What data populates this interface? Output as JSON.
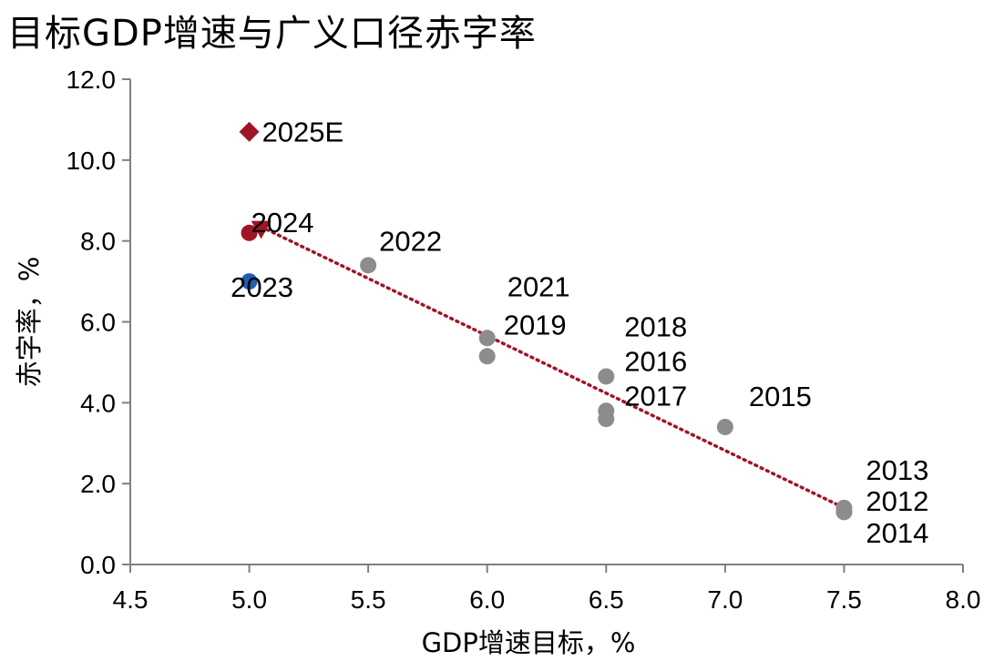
{
  "chart_data": {
    "type": "scatter",
    "title": "目标GDP增速与广义口径赤字率",
    "xlabel": "GDP增速目标，%",
    "ylabel": "赤字率，%",
    "xlim": [
      4.5,
      8.0
    ],
    "ylim": [
      0.0,
      12.0
    ],
    "xticks": [
      4.5,
      5.0,
      5.5,
      6.0,
      6.5,
      7.0,
      7.5,
      8.0
    ],
    "yticks": [
      0.0,
      2.0,
      4.0,
      6.0,
      8.0,
      10.0,
      12.0
    ],
    "xtick_labels": [
      "4.5",
      "5.0",
      "5.5",
      "6.0",
      "6.5",
      "7.0",
      "7.5",
      "8.0"
    ],
    "ytick_labels": [
      "0.0",
      "2.0",
      "4.0",
      "6.0",
      "8.0",
      "10.0",
      "12.0"
    ],
    "grid": false,
    "points": [
      {
        "label": "2012",
        "x": 7.5,
        "y": 1.3,
        "color": "#8c8c8c",
        "marker": "circle"
      },
      {
        "label": "2013",
        "x": 7.5,
        "y": 1.4,
        "color": "#8c8c8c",
        "marker": "circle"
      },
      {
        "label": "2014",
        "x": 7.5,
        "y": 1.3,
        "color": "#8c8c8c",
        "marker": "circle"
      },
      {
        "label": "2015",
        "x": 7.0,
        "y": 3.4,
        "color": "#8c8c8c",
        "marker": "circle"
      },
      {
        "label": "2016",
        "x": 6.5,
        "y": 4.65,
        "color": "#8c8c8c",
        "marker": "circle"
      },
      {
        "label": "2017",
        "x": 6.5,
        "y": 3.8,
        "color": "#8c8c8c",
        "marker": "circle"
      },
      {
        "label": "2018",
        "x": 6.5,
        "y": 3.6,
        "color": "#8c8c8c",
        "marker": "circle"
      },
      {
        "label": "2019",
        "x": 6.0,
        "y": 5.15,
        "color": "#8c8c8c",
        "marker": "circle"
      },
      {
        "label": "2021",
        "x": 6.0,
        "y": 5.6,
        "color": "#8c8c8c",
        "marker": "circle"
      },
      {
        "label": "2022",
        "x": 5.5,
        "y": 7.4,
        "color": "#8c8c8c",
        "marker": "circle"
      },
      {
        "label": "2023",
        "x": 5.0,
        "y": 7.0,
        "color": "#1f5fb0",
        "marker": "circle"
      },
      {
        "label": "2024",
        "x": 5.0,
        "y": 8.2,
        "color": "#a01428",
        "marker": "circle"
      },
      {
        "label": "2025E",
        "x": 5.0,
        "y": 10.7,
        "color": "#a01428",
        "marker": "diamond"
      },
      {
        "label": "",
        "x": 5.05,
        "y": 8.25,
        "color": "#a01428",
        "marker": "triangle-down"
      }
    ],
    "trendline": {
      "x": [
        5.05,
        7.5
      ],
      "y": [
        8.35,
        1.4
      ],
      "color": "#a01428",
      "style": "dotted"
    }
  }
}
